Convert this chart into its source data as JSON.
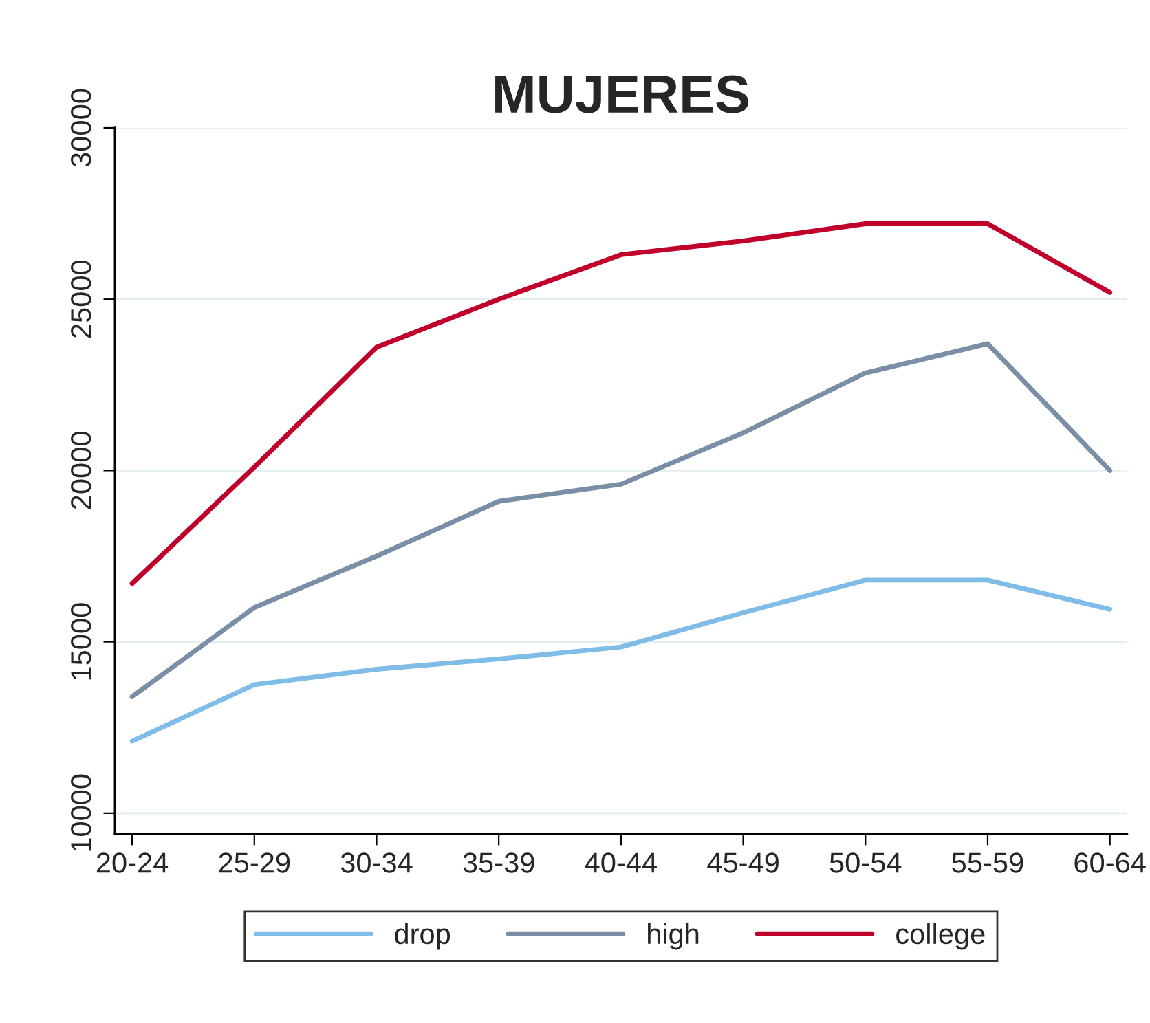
{
  "chart_data": {
    "type": "line",
    "title": "MUJERES",
    "categories": [
      "20-24",
      "25-29",
      "30-34",
      "35-39",
      "40-44",
      "45-49",
      "50-54",
      "55-59",
      "60-64"
    ],
    "series": [
      {
        "name": "drop",
        "color": "#7fbde8",
        "values": [
          12100,
          13750,
          14200,
          14500,
          14850,
          15850,
          16800,
          16800,
          15950
        ]
      },
      {
        "name": "high",
        "color": "#7a8fa6",
        "values": [
          13400,
          16000,
          17500,
          19100,
          19600,
          21100,
          22850,
          23700,
          20000
        ]
      },
      {
        "name": "college",
        "color": "#c0002a",
        "values": [
          16700,
          20100,
          23600,
          25000,
          26300,
          26700,
          27200,
          27200,
          25200
        ]
      }
    ],
    "ylim": [
      9400,
      30000
    ],
    "yticks": [
      10000,
      15000,
      20000,
      25000,
      30000
    ],
    "grid": "y",
    "legend": "bottom",
    "marker": "none",
    "line_style": "solid"
  }
}
